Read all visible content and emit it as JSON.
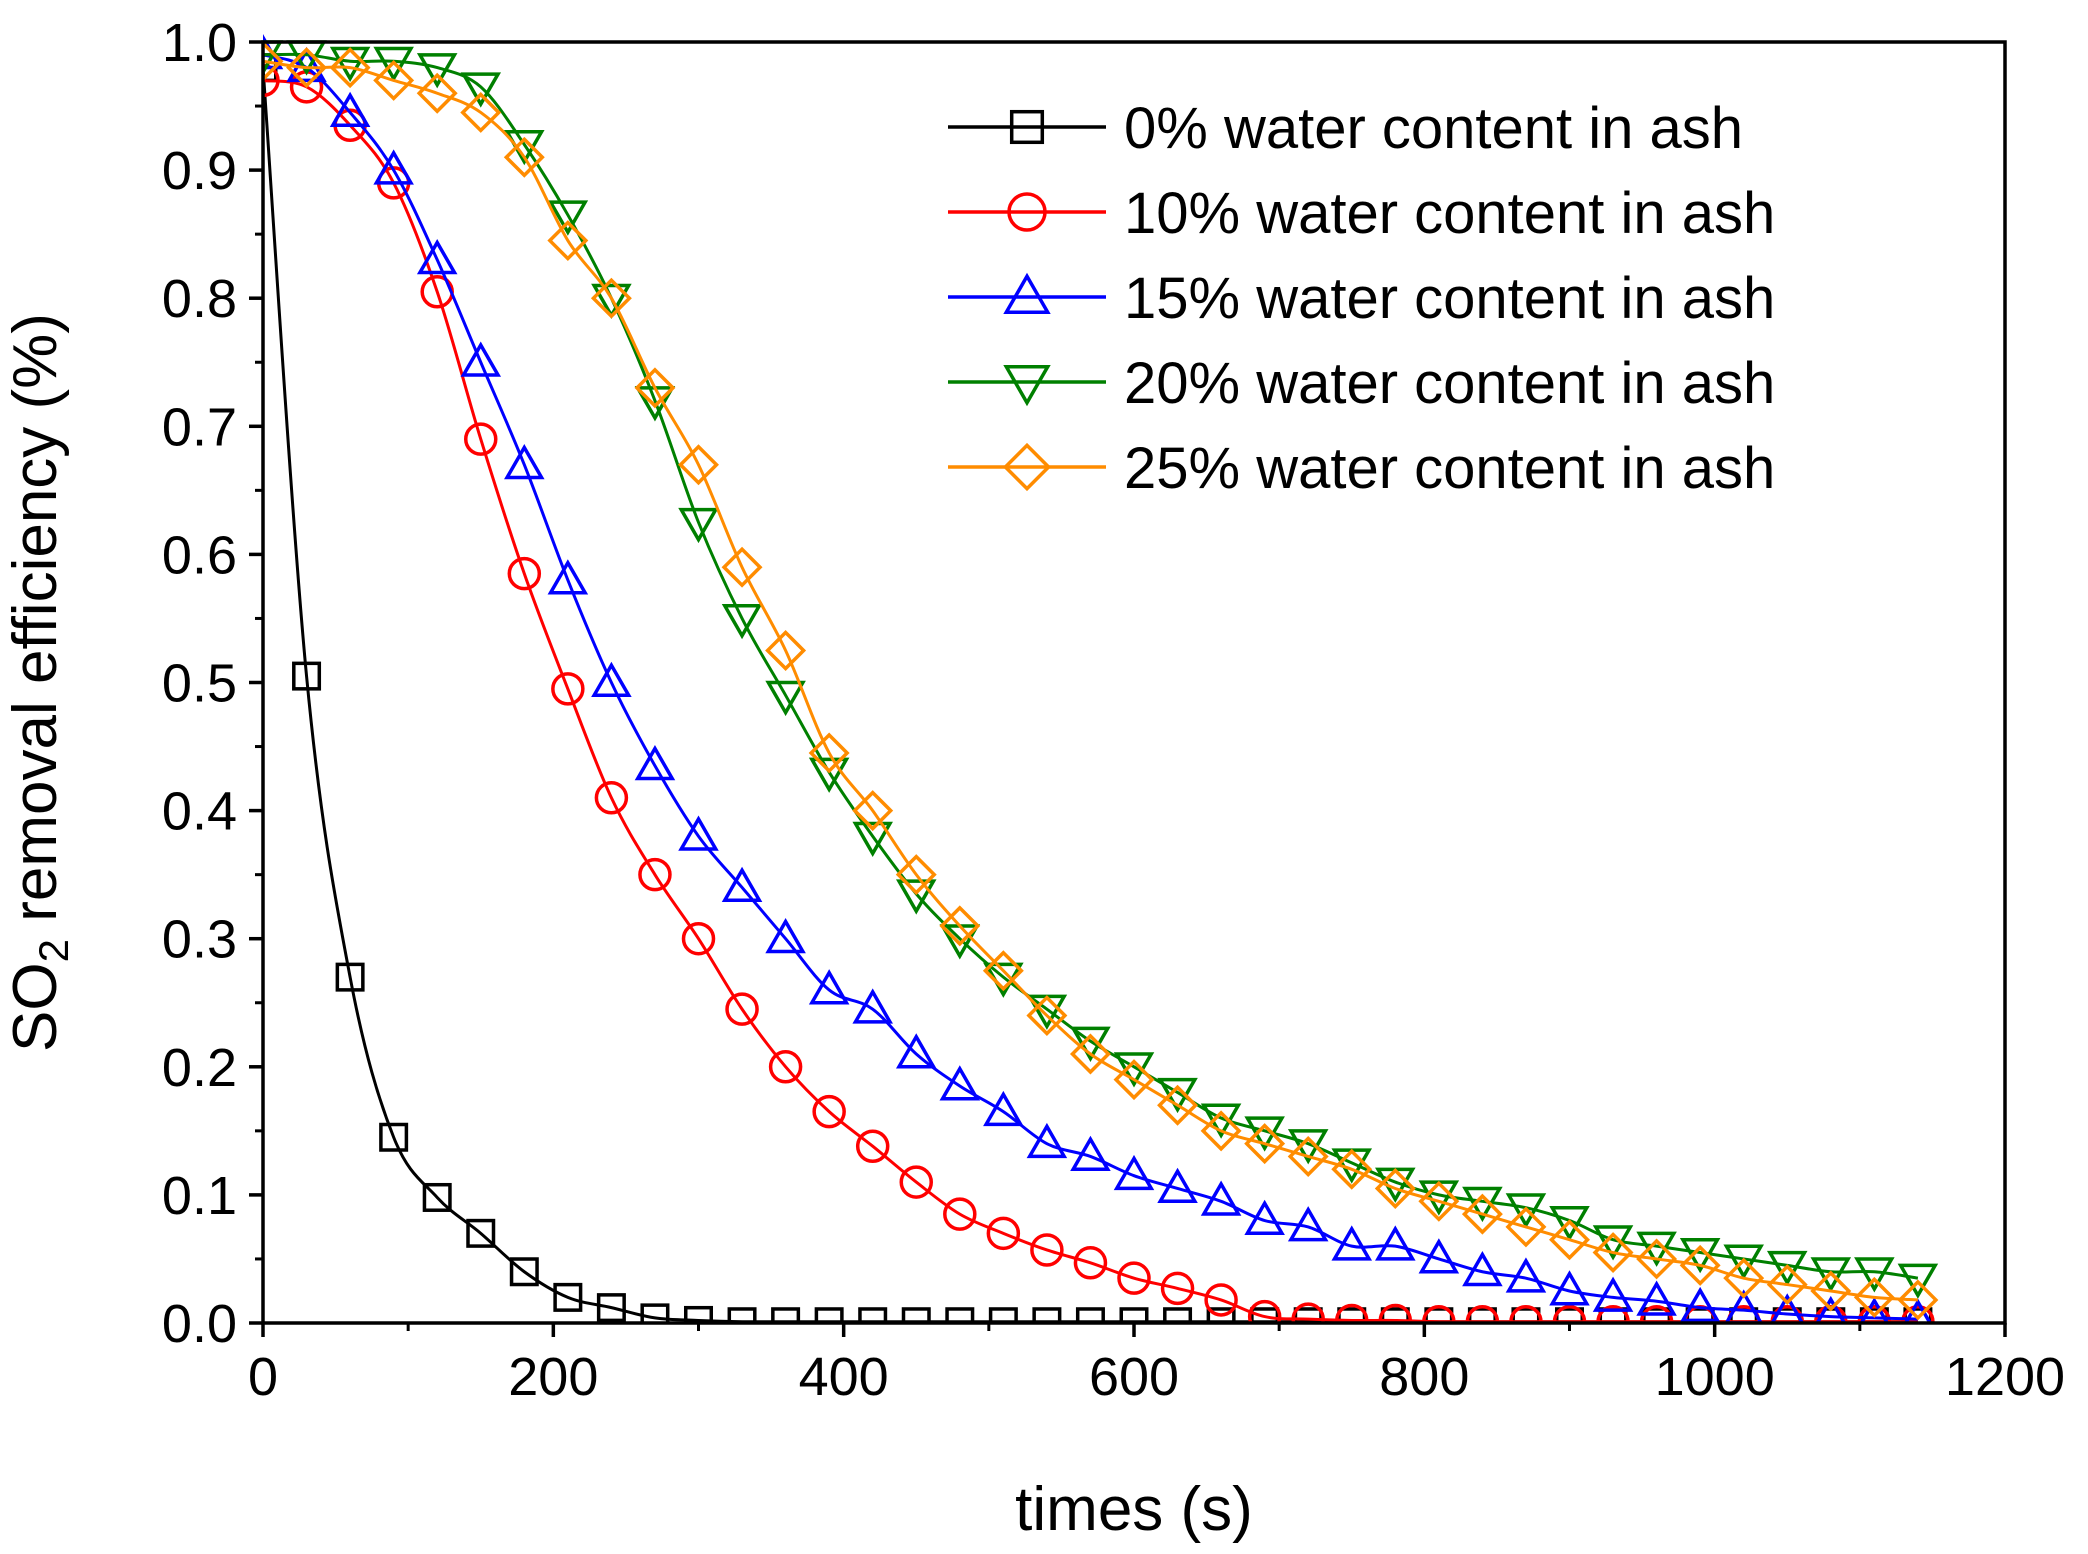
{
  "chart_data": {
    "type": "line",
    "title": "",
    "xlabel": "times (s)",
    "ylabel_main": "SO",
    "ylabel_sub": "2",
    "ylabel_rest": " removal efficiency (%)",
    "xlim": [
      0,
      1200
    ],
    "ylim": [
      0.0,
      1.0
    ],
    "x_ticks": [
      0,
      200,
      400,
      600,
      800,
      1000,
      1200
    ],
    "x_tick_labels": [
      "0",
      "200",
      "400",
      "600",
      "800",
      "1000",
      "1200"
    ],
    "y_ticks": [
      0.0,
      0.1,
      0.2,
      0.3,
      0.4,
      0.5,
      0.6,
      0.7,
      0.8,
      0.9,
      1.0
    ],
    "y_tick_labels": [
      "0.0",
      "0.1",
      "0.2",
      "0.3",
      "0.4",
      "0.5",
      "0.6",
      "0.7",
      "0.8",
      "0.9",
      "1.0"
    ],
    "grid": false,
    "legend_position": "top-right",
    "x": [
      0,
      30,
      60,
      90,
      120,
      150,
      180,
      210,
      240,
      270,
      300,
      330,
      360,
      390,
      420,
      450,
      480,
      510,
      540,
      570,
      600,
      630,
      660,
      690,
      720,
      750,
      780,
      810,
      840,
      870,
      900,
      930,
      960,
      990,
      1020,
      1050,
      1080,
      1110,
      1140
    ],
    "series": [
      {
        "name": "0% water content in ash",
        "color": "#000000",
        "marker": "square",
        "values": [
          0.98,
          0.505,
          0.27,
          0.145,
          0.098,
          0.07,
          0.04,
          0.02,
          0.012,
          0.004,
          0.002,
          0.001,
          0.001,
          0.001,
          0.001,
          0.001,
          0.001,
          0.001,
          0.001,
          0.001,
          0.001,
          0.001,
          0.001,
          0.001,
          0.001,
          0.001,
          0.001,
          0.001,
          0.001,
          0.001,
          0.001,
          0.001,
          0.001,
          0.001,
          0.001,
          0.001,
          0.001,
          0.001,
          0.001
        ]
      },
      {
        "name": "10% water content in ash",
        "color": "#ff0000",
        "marker": "circle",
        "values": [
          0.97,
          0.965,
          0.935,
          0.89,
          0.805,
          0.69,
          0.585,
          0.495,
          0.41,
          0.35,
          0.3,
          0.245,
          0.2,
          0.165,
          0.138,
          0.11,
          0.085,
          0.07,
          0.057,
          0.047,
          0.035,
          0.027,
          0.018,
          0.005,
          0.003,
          0.002,
          0.002,
          0.001,
          0.001,
          0.001,
          0.001,
          0.001,
          0.001,
          0.001,
          0.001,
          0.001,
          0.001,
          0.001,
          0.001
        ]
      },
      {
        "name": "15% water content in ash",
        "color": "#0000ff",
        "marker": "triangle-up",
        "values": [
          0.99,
          0.98,
          0.945,
          0.9,
          0.83,
          0.75,
          0.67,
          0.58,
          0.5,
          0.435,
          0.38,
          0.34,
          0.3,
          0.26,
          0.245,
          0.21,
          0.185,
          0.165,
          0.14,
          0.13,
          0.115,
          0.105,
          0.095,
          0.08,
          0.075,
          0.06,
          0.06,
          0.05,
          0.04,
          0.035,
          0.025,
          0.02,
          0.017,
          0.012,
          0.01,
          0.007,
          0.005,
          0.004,
          0.003
        ]
      },
      {
        "name": "20% water content in ash",
        "color": "#008000",
        "marker": "triangle-down",
        "values": [
          0.99,
          0.99,
          0.985,
          0.985,
          0.98,
          0.965,
          0.92,
          0.865,
          0.8,
          0.72,
          0.625,
          0.55,
          0.49,
          0.43,
          0.38,
          0.335,
          0.3,
          0.27,
          0.245,
          0.22,
          0.2,
          0.18,
          0.16,
          0.15,
          0.14,
          0.125,
          0.11,
          0.1,
          0.095,
          0.09,
          0.08,
          0.065,
          0.06,
          0.055,
          0.05,
          0.045,
          0.04,
          0.04,
          0.035
        ]
      },
      {
        "name": "25% water content in ash",
        "color": "#ff8c00",
        "marker": "diamond",
        "values": [
          0.985,
          0.98,
          0.98,
          0.97,
          0.96,
          0.945,
          0.91,
          0.845,
          0.8,
          0.73,
          0.67,
          0.59,
          0.525,
          0.445,
          0.4,
          0.35,
          0.31,
          0.275,
          0.24,
          0.21,
          0.19,
          0.17,
          0.15,
          0.14,
          0.13,
          0.12,
          0.105,
          0.095,
          0.085,
          0.075,
          0.065,
          0.055,
          0.05,
          0.045,
          0.035,
          0.03,
          0.025,
          0.02,
          0.018
        ]
      }
    ]
  }
}
